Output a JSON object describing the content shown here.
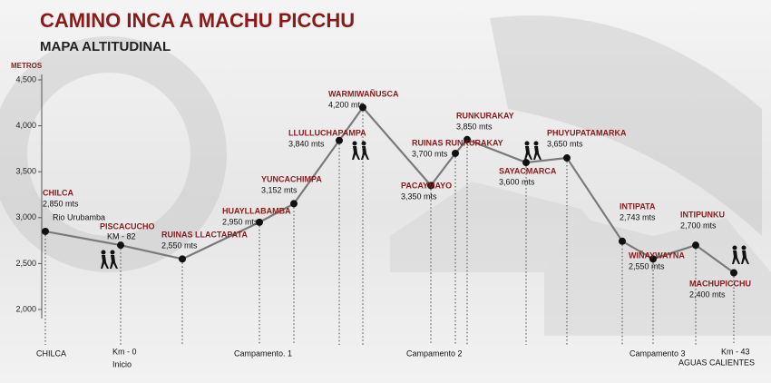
{
  "chart_data": {
    "type": "line",
    "title": "CAMINO INCA  A  MACHU PICCHU",
    "subtitle": "MAPA ALTITUDINAL",
    "y_label": "METROS",
    "ylim": [
      2000,
      4500
    ],
    "yticks": [
      {
        "value": 2000,
        "label": "2,000"
      },
      {
        "value": 2500,
        "label": "2,500"
      },
      {
        "value": 3000,
        "label": "3,000"
      },
      {
        "value": 3500,
        "label": "3,500"
      },
      {
        "value": 4000,
        "label": "4,000"
      },
      {
        "value": 4500,
        "label": "4,500"
      }
    ],
    "color": "#7a7a7a",
    "categories": [
      "CHILCA",
      "PISCACUCHO",
      "RUINAS  LLACTAPATA",
      "HUAYLLABAMBA",
      "YUNCACHIMPA",
      "LLULLUCHAPAMPA",
      "WARMIWAÑUSCA",
      "PACAYMAYO",
      "RUINAS RUNKURAKAY",
      "RUNKURAKAY",
      "SAYACMARCA",
      "PHUYUPATAMARKA",
      "INTIPATA",
      "WIÑAYWAYNA",
      "INTIPUNKU",
      "MACHUPICCHU"
    ],
    "values": [
      2850,
      2700,
      2550,
      2950,
      3152,
      3840,
      4200,
      3350,
      3700,
      3850,
      3600,
      3650,
      2743,
      2550,
      2700,
      2400
    ],
    "value_labels": [
      "2,850 mts",
      null,
      "2,550 mts",
      "2,950 mts",
      "3,152 mts",
      "3,840 mts",
      "4,200 mts",
      "3,350 mts",
      "3,700 mts",
      "3,850 mts",
      "3,600 mts",
      "3,650 mts",
      "2,743 mts",
      "2,550 mts",
      "2,700 mts",
      "2,400 mts"
    ],
    "annotations": [
      "Rio Urubamba",
      "KM - 82"
    ],
    "x_markers": [
      "CHILCA",
      "Km - 0",
      "Inicio",
      "Campamento. 1",
      "Campamento 2",
      "Campamento 3",
      "Km - 43",
      "AGUAS CALIENTES"
    ]
  }
}
